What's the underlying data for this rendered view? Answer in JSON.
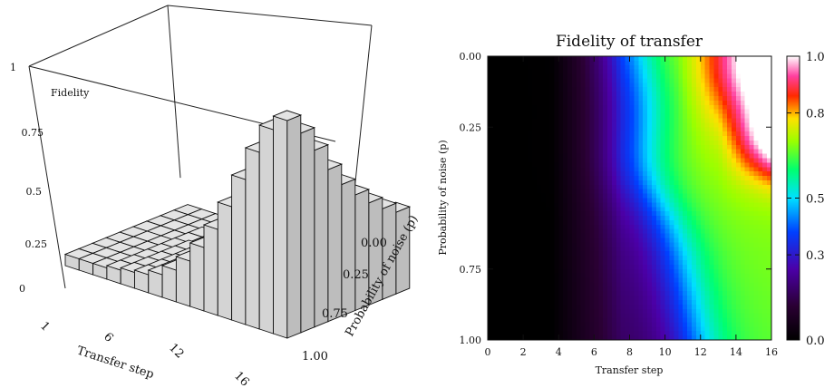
{
  "chart_data": [
    {
      "type": "bar3d",
      "zlabel": "Fidelity",
      "xlabel": "Transfer step",
      "ylabel": "Probability of noise (p)",
      "x_ticks": [
        "1",
        "6",
        "12",
        "16"
      ],
      "y_ticks": [
        "0.00",
        "0.25",
        "0.75",
        "1.00"
      ],
      "z_ticks": [
        "0",
        "0.25",
        "0.5",
        "0.75",
        "1"
      ],
      "x": [
        1,
        2,
        3,
        4,
        5,
        6,
        7,
        8,
        9,
        10,
        11,
        12,
        13,
        14,
        15,
        16
      ],
      "y": [
        0.0,
        0.125,
        0.25,
        0.375,
        0.5,
        0.625,
        0.75,
        0.875,
        1.0
      ],
      "zlim": [
        0,
        1
      ],
      "values": [
        [
          0.05,
          0.05,
          0.05,
          0.06,
          0.07,
          0.08,
          0.1,
          0.14,
          0.2,
          0.28,
          0.38,
          0.5,
          0.64,
          0.78,
          0.9,
          0.96
        ],
        [
          0.05,
          0.05,
          0.05,
          0.06,
          0.07,
          0.08,
          0.1,
          0.14,
          0.19,
          0.27,
          0.36,
          0.47,
          0.6,
          0.72,
          0.82,
          0.88
        ],
        [
          0.05,
          0.05,
          0.05,
          0.06,
          0.07,
          0.08,
          0.1,
          0.13,
          0.18,
          0.25,
          0.34,
          0.44,
          0.55,
          0.64,
          0.72,
          0.78
        ],
        [
          0.05,
          0.05,
          0.05,
          0.06,
          0.07,
          0.08,
          0.1,
          0.13,
          0.17,
          0.23,
          0.31,
          0.4,
          0.49,
          0.57,
          0.63,
          0.67
        ],
        [
          0.05,
          0.05,
          0.05,
          0.06,
          0.07,
          0.08,
          0.09,
          0.12,
          0.16,
          0.21,
          0.28,
          0.36,
          0.44,
          0.5,
          0.55,
          0.58
        ],
        [
          0.05,
          0.05,
          0.05,
          0.06,
          0.06,
          0.07,
          0.09,
          0.11,
          0.15,
          0.19,
          0.25,
          0.32,
          0.39,
          0.44,
          0.48,
          0.51
        ],
        [
          0.05,
          0.05,
          0.05,
          0.06,
          0.06,
          0.07,
          0.09,
          0.11,
          0.14,
          0.18,
          0.23,
          0.29,
          0.35,
          0.4,
          0.43,
          0.45
        ],
        [
          0.05,
          0.05,
          0.05,
          0.05,
          0.06,
          0.07,
          0.08,
          0.1,
          0.13,
          0.17,
          0.21,
          0.26,
          0.31,
          0.35,
          0.38,
          0.4
        ],
        [
          0.05,
          0.05,
          0.05,
          0.05,
          0.06,
          0.07,
          0.08,
          0.1,
          0.12,
          0.15,
          0.19,
          0.23,
          0.28,
          0.31,
          0.34,
          0.36
        ]
      ]
    },
    {
      "type": "heatmap",
      "title": "Fidelity of transfer",
      "xlabel": "Transfer step",
      "ylabel": "Probability of noise (p)",
      "x_ticks": [
        "0",
        "2",
        "4",
        "6",
        "8",
        "10",
        "12",
        "14",
        "16"
      ],
      "y_ticks": [
        "0.00",
        "0.25",
        "0.75",
        "1.00"
      ],
      "colorbar_ticks": [
        "0.0",
        "0.3",
        "0.5",
        "0.8",
        "1.0"
      ],
      "xlim": [
        0,
        16
      ],
      "ylim": [
        0,
        1
      ],
      "clim": [
        0,
        1
      ],
      "colormap": "gist_ncar-like (black → purple → blue → cyan → green → yellow → red → white)"
    }
  ]
}
